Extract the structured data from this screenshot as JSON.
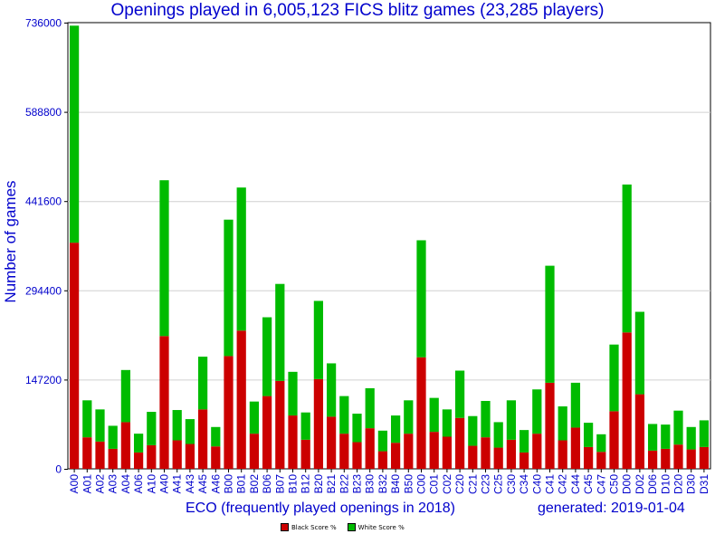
{
  "title": "Openings played in 6,005,123 FICS blitz games (23,285 players)",
  "xlabel": "ECO (frequently played openings in 2018)",
  "ylabel": "Number of games",
  "generated": "generated: 2019-01-04",
  "colors": {
    "black": "#cc0000",
    "white": "#00bb00",
    "text": "#0000cc",
    "axis": "#000000",
    "grid": "#d0d0d0"
  },
  "legend": {
    "black_label": "Black Score %",
    "white_label": "White Score %"
  },
  "chart_data": {
    "type": "bar",
    "stacked": true,
    "ylim": [
      0,
      736000
    ],
    "yticks": [
      0,
      147200,
      294400,
      441600,
      588800,
      736000
    ],
    "grid": true,
    "legend_position": "bottom-center",
    "categories": [
      "A00",
      "A01",
      "A02",
      "A03",
      "A04",
      "A06",
      "A10",
      "A40",
      "A41",
      "A43",
      "A45",
      "A46",
      "B00",
      "B01",
      "B02",
      "B06",
      "B07",
      "B10",
      "B12",
      "B20",
      "B21",
      "B22",
      "B23",
      "B30",
      "B32",
      "B40",
      "B50",
      "C00",
      "C01",
      "C02",
      "C20",
      "C21",
      "C23",
      "C25",
      "C30",
      "C34",
      "C40",
      "C41",
      "C42",
      "C44",
      "C45",
      "C47",
      "C50",
      "D00",
      "D02",
      "D06",
      "D10",
      "D20",
      "D30",
      "D31"
    ],
    "series": [
      {
        "name": "Black Score %",
        "values": [
          373000,
          52000,
          45000,
          33000,
          77000,
          27000,
          39000,
          219000,
          47000,
          41000,
          98000,
          37000,
          186000,
          228000,
          58000,
          120000,
          145000,
          88000,
          48000,
          148000,
          86000,
          58000,
          44000,
          67000,
          29000,
          43000,
          58000,
          184000,
          61000,
          53000,
          84000,
          38000,
          52000,
          35000,
          48000,
          27000,
          58000,
          142000,
          47000,
          68000,
          36000,
          28000,
          95000,
          225000,
          123000,
          30000,
          33000,
          40000,
          32000,
          36000
        ]
      },
      {
        "name": "White Score %",
        "values": [
          358000,
          61000,
          53000,
          38000,
          86000,
          31000,
          55000,
          257000,
          50000,
          41000,
          87000,
          32000,
          225000,
          236000,
          53000,
          130000,
          160000,
          72000,
          45000,
          129000,
          88000,
          62000,
          47000,
          66000,
          34000,
          45000,
          55000,
          193000,
          56000,
          45000,
          78000,
          49000,
          60000,
          42000,
          65000,
          37000,
          73000,
          193000,
          56000,
          74000,
          40000,
          29000,
          110000,
          244000,
          136000,
          44000,
          40000,
          56000,
          37000,
          44000
        ]
      }
    ]
  }
}
